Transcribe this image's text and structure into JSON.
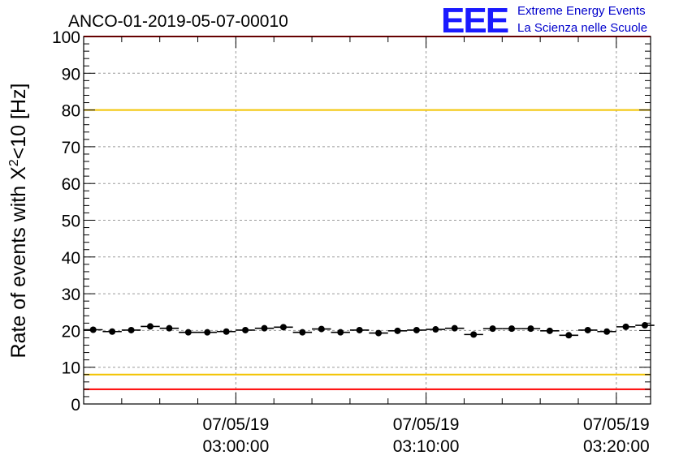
{
  "chart_data": {
    "type": "scatter",
    "title": "ANCO-01-2019-05-07-00010",
    "ylabel_main": "Rate of events with X",
    "ylabel_sup": "2",
    "ylabel_rest": "<10 [Hz]",
    "xlabel": "",
    "ylim": [
      0,
      100
    ],
    "yticks": [
      0,
      10,
      20,
      30,
      40,
      50,
      60,
      70,
      80,
      90,
      100
    ],
    "xlim_minutes": [
      -8.0,
      21.8
    ],
    "xticks": [
      {
        "minute": 0,
        "date": "07/05/19",
        "time": "03:00:00"
      },
      {
        "minute": 10,
        "date": "07/05/19",
        "time": "03:10:00"
      },
      {
        "minute": 20,
        "date": "07/05/19",
        "time": "03:20:00"
      }
    ],
    "reference_lines": [
      {
        "value": 100,
        "color": "#ff0000"
      },
      {
        "value": 80,
        "color": "#f2c400"
      },
      {
        "value": 8,
        "color": "#f2c400"
      },
      {
        "value": 4,
        "color": "#ff0000"
      }
    ],
    "series": [
      {
        "name": "rate",
        "bin_width_minutes": 1.0,
        "x_minutes": [
          -7.5,
          -6.5,
          -5.5,
          -4.5,
          -3.5,
          -2.5,
          -1.5,
          -0.5,
          0.5,
          1.5,
          2.5,
          3.5,
          4.5,
          5.5,
          6.5,
          7.5,
          8.5,
          9.5,
          10.5,
          11.5,
          12.5,
          13.5,
          14.5,
          15.5,
          16.5,
          17.5,
          18.5,
          19.5,
          20.5,
          21.5
        ],
        "values": [
          20.2,
          19.7,
          20.1,
          21.1,
          20.6,
          19.5,
          19.5,
          19.7,
          20.1,
          20.6,
          20.9,
          19.5,
          20.4,
          19.5,
          20.1,
          19.3,
          19.9,
          20.1,
          20.3,
          20.6,
          18.9,
          20.5,
          20.5,
          20.5,
          19.9,
          18.7,
          20.1,
          19.7,
          21.0,
          21.4
        ]
      }
    ],
    "grid": true,
    "legend": "none"
  },
  "logo": {
    "letters": "EEE",
    "line1": "Extreme Energy Events",
    "line2": "La Scienza nelle Scuole"
  },
  "colors": {
    "marker": "#000000",
    "red_line": "#ff0000",
    "yellow_line": "#f2c400",
    "logo": "#1a1aff"
  }
}
